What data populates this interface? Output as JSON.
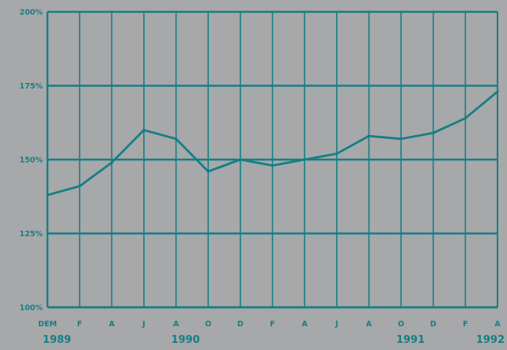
{
  "chart_data": {
    "type": "line",
    "title": "",
    "xlabel": "",
    "ylabel": "",
    "x_tick_labels": [
      "DEM",
      "F",
      "A",
      "J",
      "A",
      "O",
      "D",
      "F",
      "A",
      "J",
      "A",
      "O",
      "D",
      "F",
      "A"
    ],
    "year_labels": [
      {
        "label": "1989",
        "at_index": 0
      },
      {
        "label": "1990",
        "at_index": 4
      },
      {
        "label": "1991",
        "at_index": 11
      },
      {
        "label": "1992",
        "at_index": 14
      }
    ],
    "y_tick_values": [
      100,
      125,
      150,
      175,
      200
    ],
    "y_tick_labels": [
      "100%",
      "125%",
      "150%",
      "175%",
      "200%"
    ],
    "ylim": [
      100,
      200
    ],
    "grid": true,
    "series": [
      {
        "values": [
          138,
          141,
          149,
          160,
          157,
          146,
          150,
          148,
          150,
          152,
          158,
          157,
          159,
          164,
          173
        ]
      }
    ],
    "colors": {
      "background": "#a7a8a9",
      "line": "#157f86"
    }
  }
}
